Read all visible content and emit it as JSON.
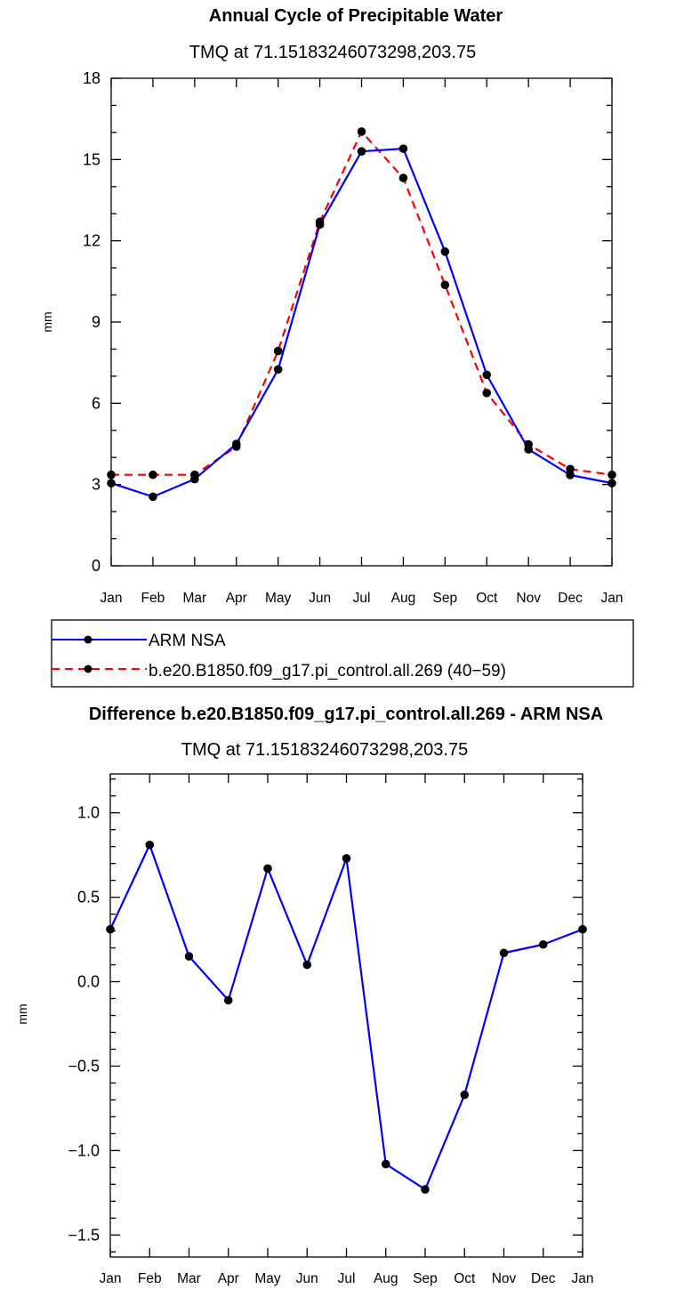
{
  "chart_data": [
    {
      "type": "line",
      "title": "Annual Cycle of Precipitable Water",
      "subtitle": "TMQ at 71.15183246073298,203.75",
      "xlabel": "",
      "ylabel": "mm",
      "categories": [
        "Jan",
        "Feb",
        "Mar",
        "Apr",
        "May",
        "Jun",
        "Jul",
        "Aug",
        "Sep",
        "Oct",
        "Nov",
        "Dec",
        "Jan"
      ],
      "ylim": [
        0,
        18
      ],
      "yticks": [
        0,
        3,
        6,
        9,
        12,
        15,
        18
      ],
      "ytick_labels": [
        "0",
        "3",
        "6",
        "9",
        "12",
        "15",
        "18"
      ],
      "series": [
        {
          "name": "ARM NSA",
          "color": "#0000ff",
          "dash": "solid",
          "values": [
            3.05,
            2.55,
            3.2,
            4.5,
            7.25,
            12.6,
            15.3,
            15.4,
            11.6,
            7.05,
            4.3,
            3.35,
            3.05
          ]
        },
        {
          "name": "b.e20.B1850.f09_g17.pi_control.all.269 (40−59)",
          "color": "#ff0000",
          "dash": "dashed",
          "values": [
            3.36,
            3.36,
            3.36,
            4.4,
            7.93,
            12.7,
            16.03,
            14.32,
            10.37,
            6.38,
            4.48,
            3.57,
            3.36
          ]
        }
      ],
      "legend": {
        "position": "bottom",
        "entries": [
          "ARM NSA",
          "b.e20.B1850.f09_g17.pi_control.all.269 (40−59)"
        ]
      }
    },
    {
      "type": "line",
      "title": "Difference b.e20.B1850.f09_g17.pi_control.all.269 - ARM NSA",
      "subtitle": "TMQ at 71.15183246073298,203.75",
      "xlabel": "",
      "ylabel": "mm",
      "categories": [
        "Jan",
        "Feb",
        "Mar",
        "Apr",
        "May",
        "Jun",
        "Jul",
        "Aug",
        "Sep",
        "Oct",
        "Nov",
        "Dec",
        "Jan"
      ],
      "ylim": [
        -1.63,
        1.23
      ],
      "yticks": [
        -1.5,
        -1.0,
        -0.5,
        0.0,
        0.5,
        1.0
      ],
      "ytick_labels": [
        "−1.5",
        "−1.0",
        "−0.5",
        "0.0",
        "0.5",
        "1.0"
      ],
      "series": [
        {
          "name": "Difference",
          "color": "#0000ff",
          "dash": "solid",
          "values": [
            0.31,
            0.81,
            0.15,
            -0.11,
            0.67,
            0.1,
            0.73,
            -1.08,
            -1.23,
            -0.67,
            0.17,
            0.22,
            0.31
          ]
        }
      ]
    }
  ]
}
